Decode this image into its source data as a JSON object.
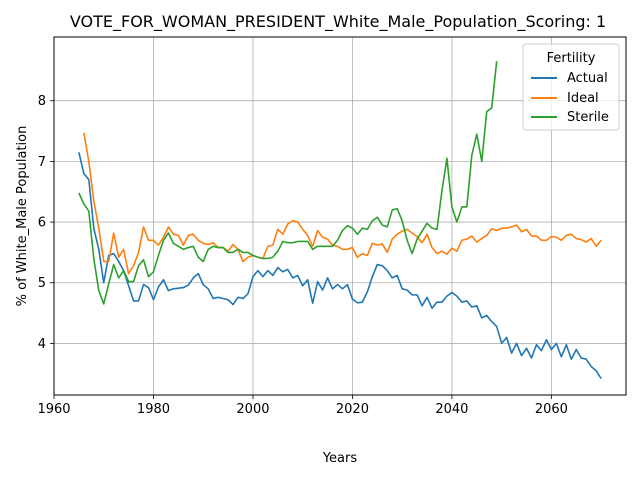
{
  "chart_data": {
    "type": "line",
    "title": "VOTE_FOR_WOMAN_PRESIDENT_White_Male_Population_Scoring: 1",
    "xlabel": "Years",
    "ylabel": "% of White_Male Population",
    "xlim": [
      1960,
      2075
    ],
    "ylim": [
      3.15,
      9.05
    ],
    "xticks": [
      1960,
      1980,
      2000,
      2020,
      2040,
      2060
    ],
    "yticks": [
      4,
      5,
      6,
      7,
      8
    ],
    "grid": true,
    "legend": {
      "title": "Fertility",
      "placement": "top-right"
    },
    "series": [
      {
        "name": "Actual",
        "color": "#1f77b4",
        "x": [
          1965,
          1966,
          1967,
          1968,
          1969,
          1970,
          1971,
          1972,
          1973,
          1974,
          1975,
          1976,
          1977,
          1978,
          1979,
          1980,
          1981,
          1982,
          1983,
          1984,
          1985,
          1986,
          1987,
          1988,
          1989,
          1990,
          1991,
          1992,
          1993,
          1994,
          1995,
          1996,
          1997,
          1998,
          1999,
          2000,
          2001,
          2002,
          2003,
          2004,
          2005,
          2006,
          2007,
          2008,
          2009,
          2010,
          2011,
          2012,
          2013,
          2014,
          2015,
          2016,
          2017,
          2018,
          2019,
          2020,
          2021,
          2022,
          2023,
          2024,
          2025,
          2026,
          2027,
          2028,
          2029,
          2030,
          2031,
          2032,
          2033,
          2034,
          2035,
          2036,
          2037,
          2038,
          2039,
          2040,
          2041,
          2042,
          2043,
          2044,
          2045,
          2046,
          2047,
          2048,
          2049,
          2050,
          2051,
          2052,
          2053,
          2054,
          2055,
          2056,
          2057,
          2058,
          2059,
          2060,
          2061,
          2062,
          2063,
          2064,
          2065,
          2066,
          2067,
          2068,
          2069,
          2070
        ],
        "y": [
          7.15,
          6.8,
          6.7,
          5.9,
          5.55,
          5.0,
          5.45,
          5.48,
          5.35,
          5.2,
          4.95,
          4.7,
          4.7,
          4.97,
          4.92,
          4.72,
          4.93,
          5.05,
          4.87,
          4.9,
          4.91,
          4.92,
          4.96,
          5.08,
          5.15,
          4.97,
          4.9,
          4.74,
          4.76,
          4.74,
          4.72,
          4.64,
          4.76,
          4.74,
          4.82,
          5.1,
          5.2,
          5.1,
          5.2,
          5.12,
          5.25,
          5.18,
          5.22,
          5.08,
          5.12,
          4.95,
          5.05,
          4.66,
          5.02,
          4.88,
          5.08,
          4.9,
          4.97,
          4.9,
          4.97,
          4.73,
          4.67,
          4.68,
          4.85,
          5.1,
          5.3,
          5.28,
          5.2,
          5.08,
          5.12,
          4.9,
          4.88,
          4.8,
          4.8,
          4.62,
          4.76,
          4.58,
          4.68,
          4.68,
          4.78,
          4.84,
          4.78,
          4.68,
          4.7,
          4.6,
          4.62,
          4.42,
          4.46,
          4.36,
          4.28,
          4.0,
          4.1,
          3.84,
          4.0,
          3.8,
          3.92,
          3.76,
          3.98,
          3.88,
          4.06,
          3.9,
          4.0,
          3.78,
          3.98,
          3.74,
          3.9,
          3.76,
          3.74,
          3.62,
          3.55,
          3.42
        ]
      },
      {
        "name": "Ideal",
        "color": "#ff7f0e",
        "x": [
          1966,
          1967,
          1968,
          1969,
          1970,
          1971,
          1972,
          1973,
          1974,
          1975,
          1976,
          1977,
          1978,
          1979,
          1980,
          1981,
          1982,
          1983,
          1984,
          1985,
          1986,
          1987,
          1988,
          1989,
          1990,
          1991,
          1992,
          1993,
          1994,
          1995,
          1996,
          1997,
          1998,
          1999,
          2000,
          2001,
          2002,
          2003,
          2004,
          2005,
          2006,
          2007,
          2008,
          2009,
          2010,
          2011,
          2012,
          2013,
          2014,
          2015,
          2016,
          2017,
          2018,
          2019,
          2020,
          2021,
          2022,
          2023,
          2024,
          2025,
          2026,
          2027,
          2028,
          2029,
          2030,
          2031,
          2032,
          2033,
          2034,
          2035,
          2036,
          2037,
          2038,
          2039,
          2040,
          2041,
          2042,
          2043,
          2044,
          2045,
          2046,
          2047,
          2048,
          2049,
          2050,
          2051,
          2052,
          2053,
          2054,
          2055,
          2056,
          2057,
          2058,
          2059,
          2060,
          2061,
          2062,
          2063,
          2064,
          2065,
          2066,
          2067,
          2068,
          2069,
          2070
        ],
        "y": [
          7.47,
          7.0,
          6.35,
          5.9,
          5.35,
          5.35,
          5.82,
          5.42,
          5.55,
          5.15,
          5.28,
          5.5,
          5.92,
          5.7,
          5.7,
          5.62,
          5.75,
          5.92,
          5.8,
          5.78,
          5.62,
          5.78,
          5.8,
          5.7,
          5.65,
          5.63,
          5.66,
          5.58,
          5.58,
          5.52,
          5.63,
          5.55,
          5.35,
          5.42,
          5.45,
          5.42,
          5.4,
          5.6,
          5.62,
          5.88,
          5.8,
          5.97,
          6.02,
          6.0,
          5.88,
          5.78,
          5.6,
          5.86,
          5.75,
          5.72,
          5.62,
          5.6,
          5.55,
          5.55,
          5.58,
          5.42,
          5.48,
          5.45,
          5.65,
          5.62,
          5.64,
          5.5,
          5.72,
          5.8,
          5.85,
          5.88,
          5.82,
          5.76,
          5.66,
          5.8,
          5.58,
          5.48,
          5.52,
          5.47,
          5.57,
          5.52,
          5.7,
          5.72,
          5.77,
          5.67,
          5.73,
          5.78,
          5.89,
          5.86,
          5.9,
          5.9,
          5.92,
          5.95,
          5.84,
          5.88,
          5.77,
          5.77,
          5.7,
          5.7,
          5.76,
          5.75,
          5.7,
          5.78,
          5.8,
          5.73,
          5.71,
          5.67,
          5.73,
          5.6,
          5.7
        ]
      },
      {
        "name": "Sterile",
        "color": "#2ca02c",
        "x": [
          1965,
          1966,
          1967,
          1968,
          1969,
          1970,
          1971,
          1972,
          1973,
          1974,
          1975,
          1976,
          1977,
          1978,
          1979,
          1980,
          1981,
          1982,
          1983,
          1984,
          1985,
          1986,
          1987,
          1988,
          1989,
          1990,
          1991,
          1992,
          1993,
          1994,
          1995,
          1996,
          1997,
          1998,
          1999,
          2000,
          2001,
          2002,
          2003,
          2004,
          2005,
          2006,
          2007,
          2008,
          2009,
          2010,
          2011,
          2012,
          2013,
          2014,
          2015,
          2016,
          2017,
          2018,
          2019,
          2020,
          2021,
          2022,
          2023,
          2024,
          2025,
          2026,
          2027,
          2028,
          2029,
          2030,
          2031,
          2032,
          2033,
          2034,
          2035,
          2036,
          2037,
          2038,
          2039,
          2040,
          2041,
          2042,
          2043,
          2044,
          2045,
          2046,
          2047,
          2048,
          2049
        ],
        "y": [
          6.48,
          6.3,
          6.18,
          5.4,
          4.87,
          4.65,
          4.98,
          5.3,
          5.08,
          5.2,
          5.02,
          5.02,
          5.28,
          5.38,
          5.1,
          5.18,
          5.45,
          5.7,
          5.82,
          5.65,
          5.6,
          5.55,
          5.58,
          5.6,
          5.42,
          5.35,
          5.55,
          5.6,
          5.58,
          5.58,
          5.5,
          5.5,
          5.55,
          5.5,
          5.5,
          5.45,
          5.42,
          5.4,
          5.4,
          5.42,
          5.52,
          5.68,
          5.66,
          5.66,
          5.68,
          5.68,
          5.68,
          5.55,
          5.6,
          5.6,
          5.6,
          5.6,
          5.7,
          5.86,
          5.94,
          5.9,
          5.8,
          5.9,
          5.88,
          6.02,
          6.08,
          5.95,
          5.92,
          6.2,
          6.22,
          6.02,
          5.7,
          5.48,
          5.72,
          5.85,
          5.98,
          5.9,
          5.88,
          6.52,
          7.05,
          6.25,
          6.0,
          6.25,
          6.25,
          7.1,
          7.45,
          7.0,
          7.82,
          7.88,
          8.65
        ]
      }
    ]
  }
}
